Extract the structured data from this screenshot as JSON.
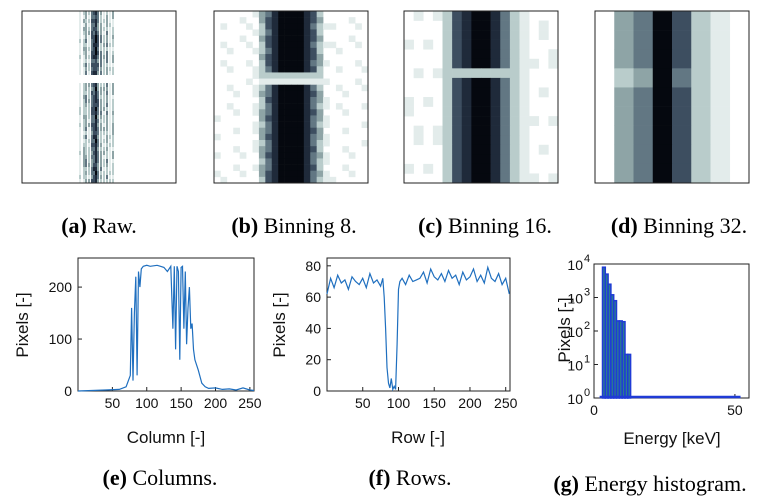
{
  "subfigures": [
    {
      "tag": "(a)",
      "caption": "Raw."
    },
    {
      "tag": "(b)",
      "caption": "Binning 8."
    },
    {
      "tag": "(c)",
      "caption": "Binning 16."
    },
    {
      "tag": "(d)",
      "caption": "Binning 32."
    },
    {
      "tag": "(e)",
      "caption": "Columns."
    },
    {
      "tag": "(f)",
      "caption": "Rows."
    },
    {
      "tag": "(g)",
      "caption": "Energy histogram."
    }
  ],
  "chart_data": [
    {
      "type": "line",
      "xlabel": "Column [-]",
      "ylabel": "Pixels [-]",
      "xlim": [
        0,
        256
      ],
      "ylim": [
        0,
        256
      ],
      "xticks": [
        50,
        100,
        150,
        200,
        250
      ],
      "yticks": [
        0,
        100,
        200
      ],
      "x": [
        0,
        20,
        40,
        60,
        70,
        76,
        78,
        80,
        82,
        84,
        86,
        88,
        90,
        92,
        95,
        100,
        105,
        110,
        115,
        120,
        125,
        130,
        135,
        138,
        140,
        142,
        144,
        146,
        148,
        150,
        152,
        154,
        156,
        158,
        160,
        162,
        164,
        166,
        168,
        170,
        175,
        180,
        185,
        190,
        200,
        210,
        220,
        230,
        240,
        250,
        256
      ],
      "y": [
        0,
        1,
        2,
        3,
        8,
        30,
        160,
        20,
        150,
        220,
        30,
        230,
        200,
        235,
        240,
        242,
        240,
        241,
        242,
        240,
        238,
        230,
        240,
        120,
        240,
        80,
        240,
        230,
        60,
        238,
        240,
        120,
        230,
        90,
        160,
        200,
        120,
        130,
        80,
        60,
        40,
        15,
        8,
        5,
        6,
        3,
        4,
        2,
        6,
        2,
        1
      ]
    },
    {
      "type": "line",
      "xlabel": "Row [-]",
      "ylabel": "Pixels [-]",
      "xlim": [
        0,
        256
      ],
      "ylim": [
        0,
        85
      ],
      "xticks": [
        50,
        100,
        150,
        200,
        250
      ],
      "yticks": [
        0,
        20,
        40,
        60,
        80
      ],
      "x": [
        0,
        5,
        10,
        15,
        20,
        25,
        30,
        35,
        40,
        45,
        50,
        55,
        60,
        65,
        70,
        75,
        78,
        80,
        82,
        84,
        86,
        88,
        90,
        92,
        94,
        96,
        98,
        100,
        102,
        105,
        110,
        115,
        120,
        125,
        130,
        135,
        140,
        145,
        150,
        155,
        160,
        165,
        170,
        175,
        180,
        185,
        190,
        195,
        200,
        205,
        210,
        215,
        220,
        225,
        230,
        235,
        240,
        245,
        250,
        255
      ],
      "y": [
        62,
        72,
        66,
        74,
        69,
        71,
        65,
        73,
        70,
        68,
        72,
        66,
        75,
        69,
        71,
        67,
        72,
        60,
        40,
        15,
        5,
        2,
        8,
        1,
        3,
        1,
        30,
        65,
        70,
        72,
        68,
        74,
        70,
        71,
        72,
        76,
        69,
        78,
        73,
        71,
        75,
        70,
        77,
        72,
        74,
        68,
        76,
        71,
        73,
        78,
        70,
        74,
        69,
        79,
        72,
        70,
        75,
        68,
        72,
        62
      ]
    },
    {
      "type": "bar",
      "xlabel": "Energy [keV]",
      "ylabel": "Pixels [-]",
      "yscale": "log",
      "xlim": [
        0,
        55
      ],
      "ylim": [
        1,
        10000
      ],
      "xticks": [
        0,
        50
      ],
      "yticks_exp": [
        0,
        1,
        2,
        3,
        4
      ],
      "categories": [
        2.5,
        3.5,
        4.5,
        5.5,
        6.5,
        7.5,
        8.5,
        9.5,
        10.5,
        11.5,
        12.5
      ],
      "values": [
        1,
        8000,
        5000,
        2500,
        1200,
        800,
        200,
        200,
        190,
        20,
        20
      ],
      "bar_color": "#2a7d8f",
      "edge_color": "#1f3bd6",
      "baseline_xmax": 52
    }
  ],
  "image_panels": [
    {
      "kind": "raw"
    },
    {
      "kind": "bin8"
    },
    {
      "kind": "bin16"
    },
    {
      "kind": "bin32"
    }
  ],
  "colors": {
    "line": "#1f6fbf",
    "axis": "#222222",
    "grey_map": [
      "#ffffff",
      "#e3eceb",
      "#b9cccb",
      "#8ea4a6",
      "#627783",
      "#3d4e60",
      "#1f2a3a",
      "#05080f"
    ]
  }
}
